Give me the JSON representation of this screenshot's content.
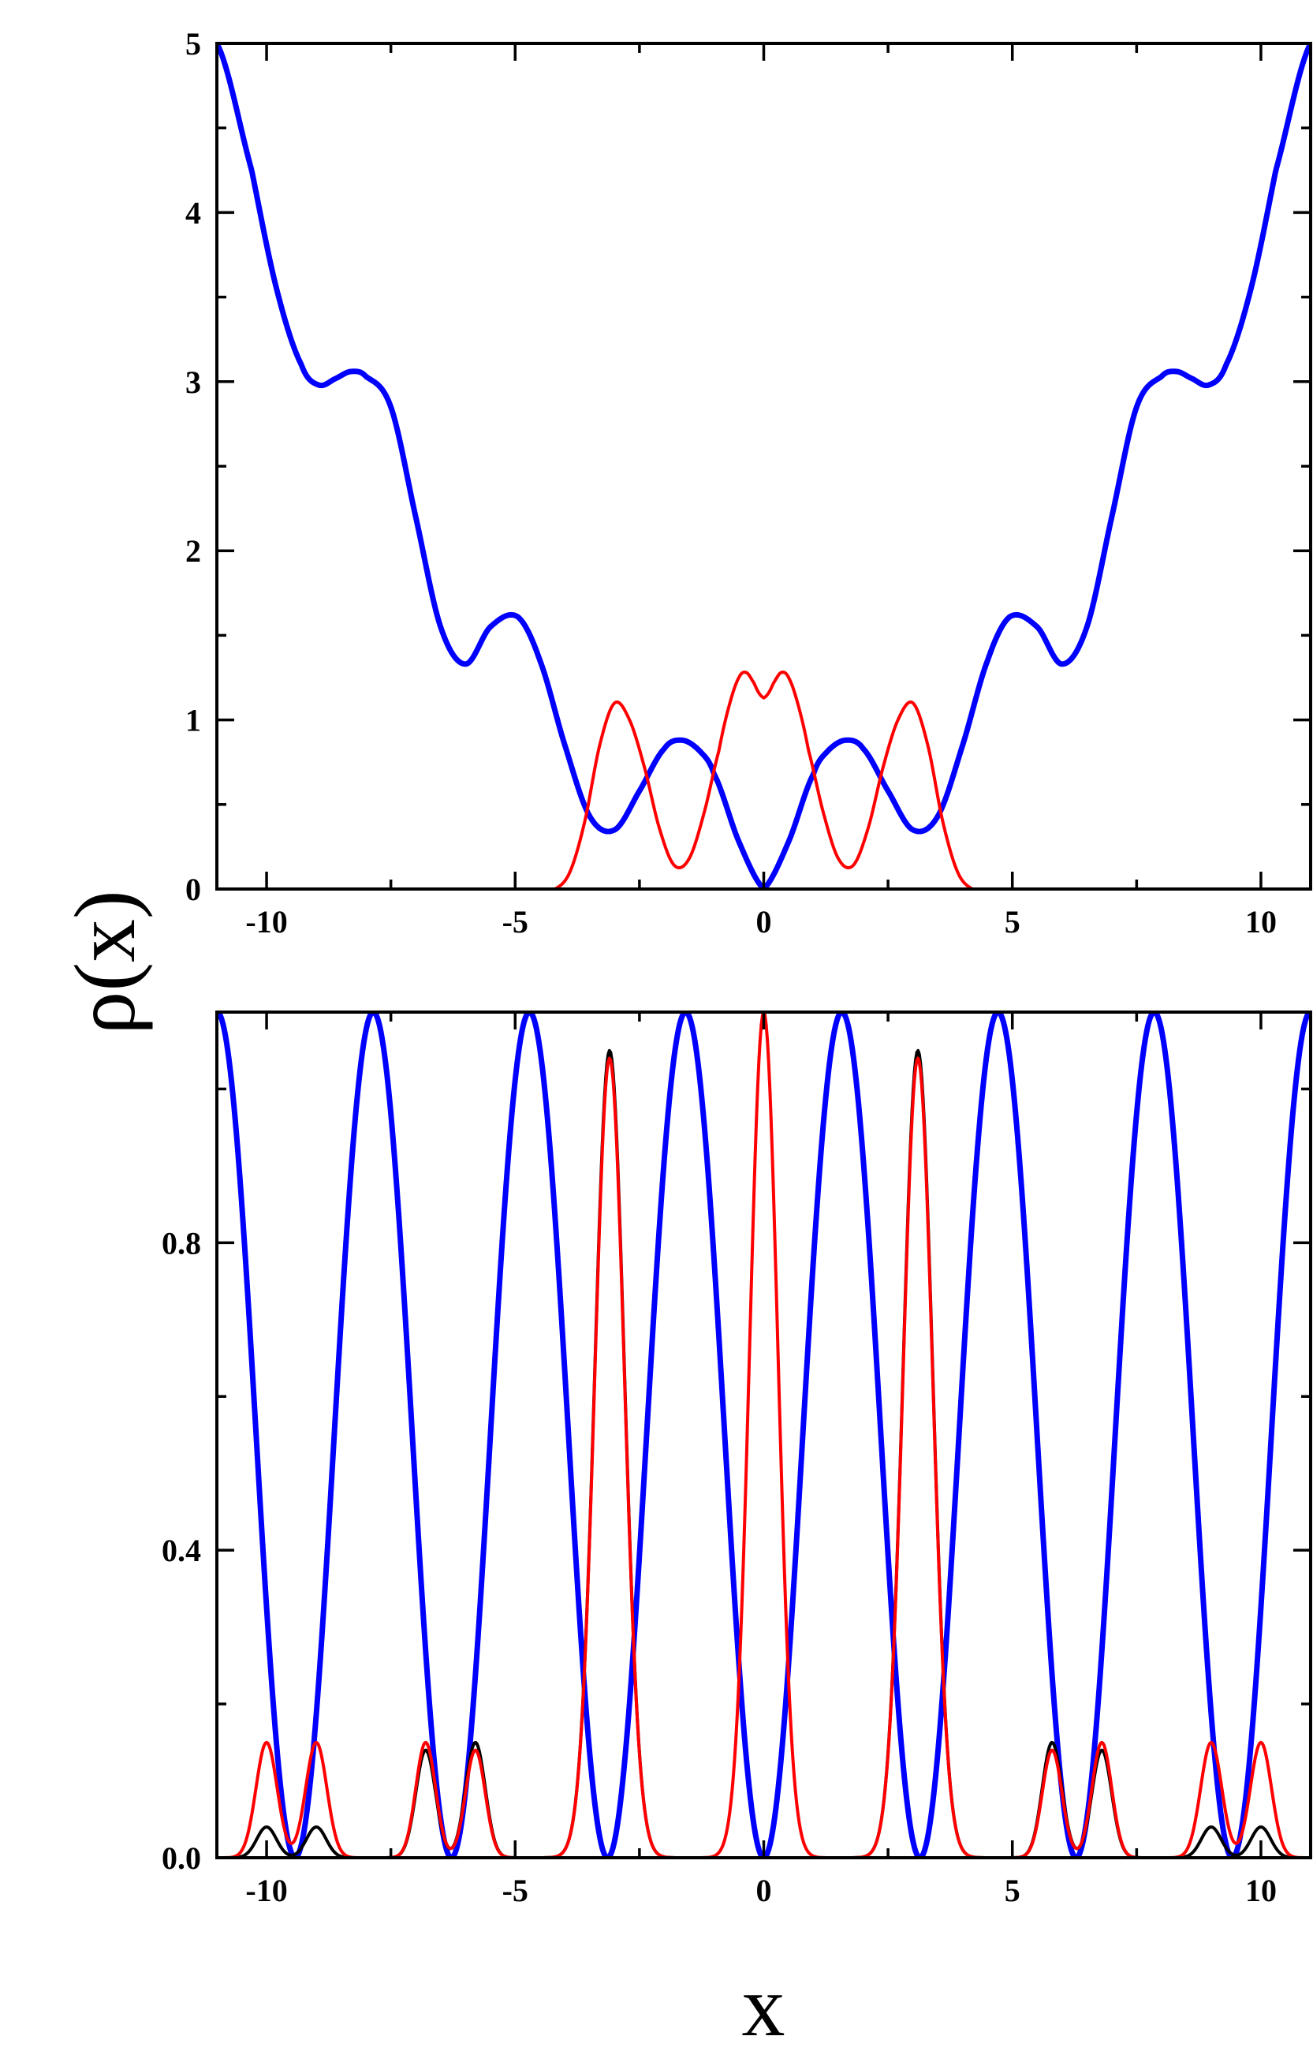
{
  "ylabel": "ρ(x)",
  "xlabel": "x",
  "colors": {
    "blue": "#0000ff",
    "red": "#ff0000",
    "black": "#000000",
    "axis": "#000000"
  },
  "chart_data": [
    {
      "type": "line",
      "panel": "top",
      "xlim": [
        -11,
        11
      ],
      "ylim": [
        0,
        5
      ],
      "xticks": [
        -10,
        -5,
        0,
        5,
        10
      ],
      "xtick_labels": [
        "-10",
        "-5",
        "0",
        "5",
        "10"
      ],
      "yticks": [
        0,
        1,
        2,
        3,
        4,
        5
      ],
      "ytick_labels": [
        "0",
        "1",
        "2",
        "3",
        "4",
        "5"
      ],
      "grid": false,
      "series": [
        {
          "color": "#0000ff",
          "x": [
            0,
            0.5,
            1.0,
            1.3,
            1.65,
            2.0,
            2.5,
            3.0,
            3.5,
            4.0,
            4.5,
            4.95,
            5.5,
            6.0,
            6.5,
            7.0,
            7.5,
            8.0,
            8.3,
            8.6,
            8.95,
            9.3,
            9.8,
            10.3,
            11.0
          ],
          "y": [
            0,
            0.28,
            0.68,
            0.82,
            0.88,
            0.83,
            0.58,
            0.35,
            0.43,
            0.85,
            1.35,
            1.61,
            1.55,
            1.33,
            1.55,
            2.2,
            2.85,
            3.03,
            3.06,
            3.02,
            2.98,
            3.1,
            3.55,
            4.25,
            5.0
          ],
          "symmetric": true
        },
        {
          "color": "#ff0000",
          "x": [
            0,
            0.1,
            0.2,
            0.35,
            0.5,
            0.7,
            0.9,
            1.2,
            1.5,
            1.8,
            2.1,
            2.4,
            2.7,
            3.0,
            3.3,
            3.6,
            3.9,
            4.2
          ],
          "y": [
            1.13,
            1.16,
            1.22,
            1.28,
            1.25,
            1.08,
            0.82,
            0.45,
            0.18,
            0.14,
            0.36,
            0.72,
            1.0,
            1.1,
            0.85,
            0.4,
            0.1,
            0.0
          ],
          "symmetric": true
        }
      ]
    },
    {
      "type": "line",
      "panel": "bottom",
      "xlim": [
        -11,
        11
      ],
      "ylim": [
        0,
        1.1
      ],
      "xticks": [
        -10,
        -5,
        0,
        5,
        10
      ],
      "xtick_labels": [
        "-10",
        "-5",
        "0",
        "5",
        "10"
      ],
      "yticks": [
        0,
        0.4,
        0.8
      ],
      "ytick_labels": [
        "0.0",
        "0.4",
        "0.8"
      ],
      "grid": false,
      "series": [
        {
          "color": "#0000ff",
          "function": "1.1*sin^2(x)",
          "amplitude": 1.1,
          "period": 3.1416
        },
        {
          "color": "#000000",
          "peaks": [
            {
              "x": 3.1,
              "y": 1.05,
              "w": 0.42
            },
            {
              "x": 5.8,
              "y": 0.15,
              "w": 0.28
            },
            {
              "x": 6.8,
              "y": 0.14,
              "w": 0.28
            },
            {
              "x": 9.0,
              "y": 0.04,
              "w": 0.28
            },
            {
              "x": 10.0,
              "y": 0.04,
              "w": 0.28
            }
          ],
          "symmetric": true
        },
        {
          "color": "#ff0000",
          "peaks": [
            {
              "x": 0.0,
              "y": 1.1,
              "w": 0.4
            },
            {
              "x": 3.1,
              "y": 1.04,
              "w": 0.42
            },
            {
              "x": 5.8,
              "y": 0.14,
              "w": 0.28
            },
            {
              "x": 6.8,
              "y": 0.15,
              "w": 0.28
            },
            {
              "x": 9.0,
              "y": 0.15,
              "w": 0.3
            },
            {
              "x": 10.0,
              "y": 0.15,
              "w": 0.3
            }
          ],
          "symmetric": true
        }
      ]
    }
  ]
}
